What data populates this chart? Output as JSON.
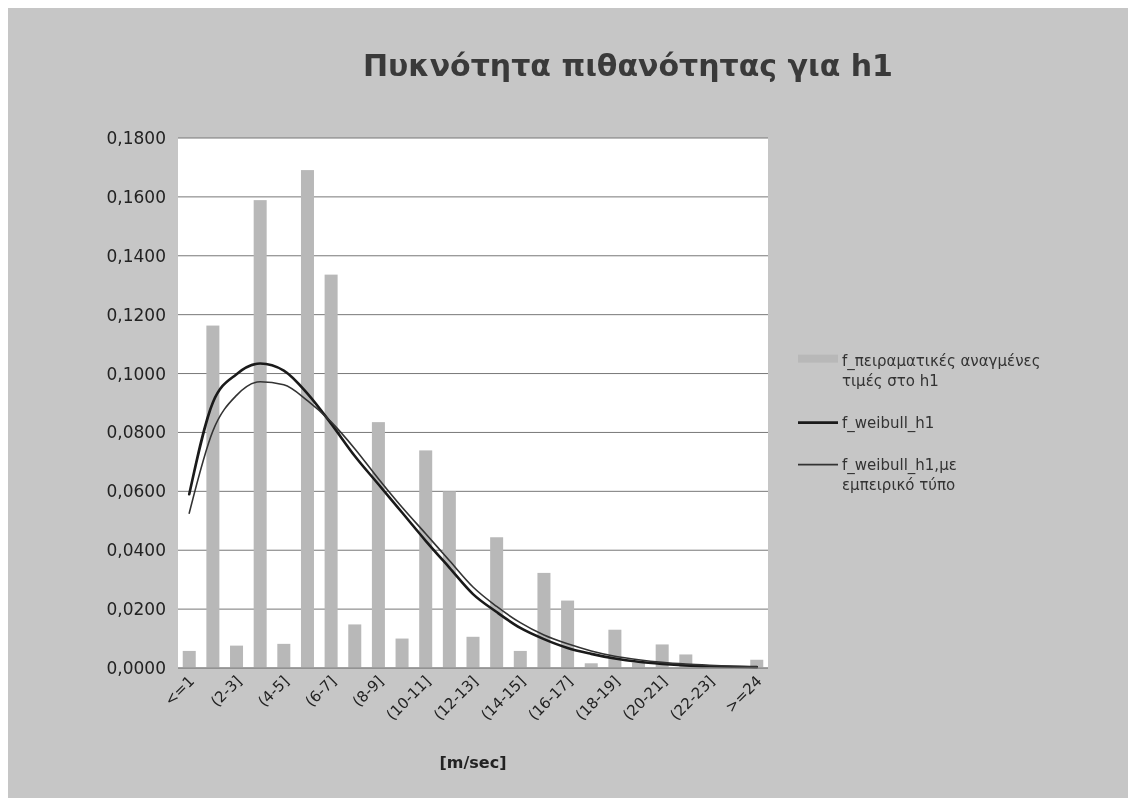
{
  "chart_data": {
    "type": "bar",
    "title": "Πυκνότητα πιθανότητας για  h1",
    "xlabel": "[m/sec]",
    "categories": [
      "<=1",
      null,
      "(2-3]",
      null,
      "(4-5]",
      null,
      "(6-7]",
      null,
      "(8-9]",
      null,
      "(10-11]",
      null,
      "(12-13]",
      null,
      "(14-15]",
      null,
      "(16-17]",
      null,
      "(18-19]",
      null,
      "(20-21]",
      null,
      "(22-23]",
      null,
      ">=24"
    ],
    "series": [
      {
        "name": "f_πειραματικές αναγμένες τιμές στο h1",
        "color": "#b8b8b8",
        "values": [
          0.0058,
          0.1163,
          0.0076,
          0.1589,
          0.0082,
          0.1691,
          0.1336,
          0.0148,
          0.0835,
          0.01,
          0.0739,
          0.06,
          0.0106,
          0.0444,
          0.0058,
          0.0323,
          0.0229,
          0.0016,
          0.013,
          0.0018,
          0.008,
          0.0046,
          null,
          null,
          0.0028
        ]
      },
      {
        "name": "f_weibull_h1",
        "type": "line",
        "color": "#1a1a1a",
        "values": [
          0.059,
          0.0902,
          0.0998,
          0.1034,
          0.101,
          0.0932,
          0.083,
          0.072,
          0.0624,
          0.0528,
          0.0432,
          0.0341,
          0.0251,
          0.019,
          0.0136,
          0.0098,
          0.0068,
          0.0048,
          0.0032,
          0.0021,
          0.0014,
          0.0009,
          0.0006,
          0.0004,
          0.0003
        ]
      },
      {
        "name": "f_weibull_h1,με εμπειρικό τύπο",
        "type": "line",
        "color": "#333333",
        "values": [
          0.0526,
          0.0805,
          0.0926,
          0.0972,
          0.0962,
          0.0908,
          0.0836,
          0.0745,
          0.0643,
          0.0546,
          0.0456,
          0.0365,
          0.0275,
          0.0209,
          0.0154,
          0.0112,
          0.0082,
          0.0058,
          0.004,
          0.0028,
          0.0019,
          0.0013,
          0.0009,
          0.0006,
          0.0004
        ]
      }
    ],
    "ylim": [
      0,
      0.18
    ],
    "yticks": [
      {
        "value": 0,
        "label": "0,0000"
      },
      {
        "value": 0.02,
        "label": "0,0200"
      },
      {
        "value": 0.04,
        "label": "0,0400"
      },
      {
        "value": 0.06,
        "label": "0,0600"
      },
      {
        "value": 0.08,
        "label": "0,0800"
      },
      {
        "value": 0.1,
        "label": "0,1000"
      },
      {
        "value": 0.12,
        "label": "0,1200"
      },
      {
        "value": 0.14,
        "label": "0,1400"
      },
      {
        "value": 0.16,
        "label": "0,1600"
      },
      {
        "value": 0.18,
        "label": "0,1800"
      }
    ],
    "grid": "y",
    "legend": "right",
    "marker": "none",
    "line_style": "solid"
  }
}
